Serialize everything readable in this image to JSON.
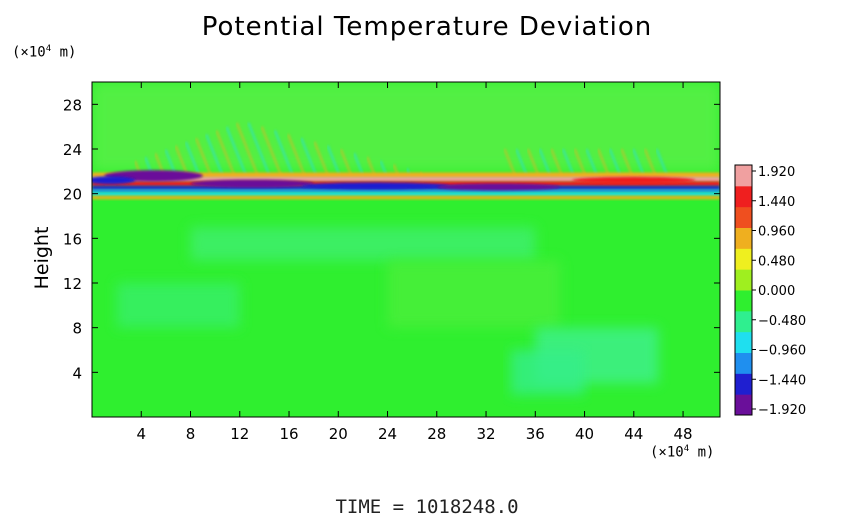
{
  "title": "Potential Temperature Deviation",
  "y_unit": "(×10",
  "y_unit_exp": "4",
  "y_unit_tail": " m)",
  "x_unit": "(×10",
  "x_unit_exp": "4",
  "x_unit_tail": " m)",
  "ylabel": "Height",
  "time_label": "TIME  =  1018248.0",
  "colors": {
    "background_field": "#2fef2f",
    "ramp": [
      "#6a0f9a",
      "#1f1fd0",
      "#1f8fef",
      "#1fdfef",
      "#2fef8f",
      "#2fef2f",
      "#9fef1f",
      "#efef1f",
      "#efaf1f",
      "#ef4f1f",
      "#ef1f1f",
      "#f0a0a0"
    ]
  },
  "chart_data": {
    "type": "heatmap",
    "title": "Potential Temperature Deviation",
    "ylabel": "Height",
    "xlim": [
      0,
      51
    ],
    "ylim": [
      0,
      30
    ],
    "x_ticks": [
      "4",
      "8",
      "12",
      "16",
      "20",
      "24",
      "28",
      "32",
      "36",
      "40",
      "44",
      "48"
    ],
    "x_tick_values": [
      4,
      8,
      12,
      16,
      20,
      24,
      28,
      32,
      36,
      40,
      44,
      48
    ],
    "y_ticks": [
      "4",
      "8",
      "12",
      "16",
      "20",
      "24",
      "28"
    ],
    "y_tick_values": [
      4,
      8,
      12,
      16,
      20,
      24,
      28
    ],
    "colorbar": {
      "labels": [
        "1.920",
        "1.440",
        "0.960",
        "0.480",
        "0.000",
        "−0.480",
        "−0.960",
        "−1.440",
        "−1.920"
      ],
      "values": [
        1.92,
        1.44,
        0.96,
        0.48,
        0.0,
        -0.48,
        -0.96,
        -1.44,
        -1.92
      ]
    },
    "features": {
      "strong_layer_height": 21,
      "wave_band_heights": [
        21,
        25
      ]
    }
  }
}
